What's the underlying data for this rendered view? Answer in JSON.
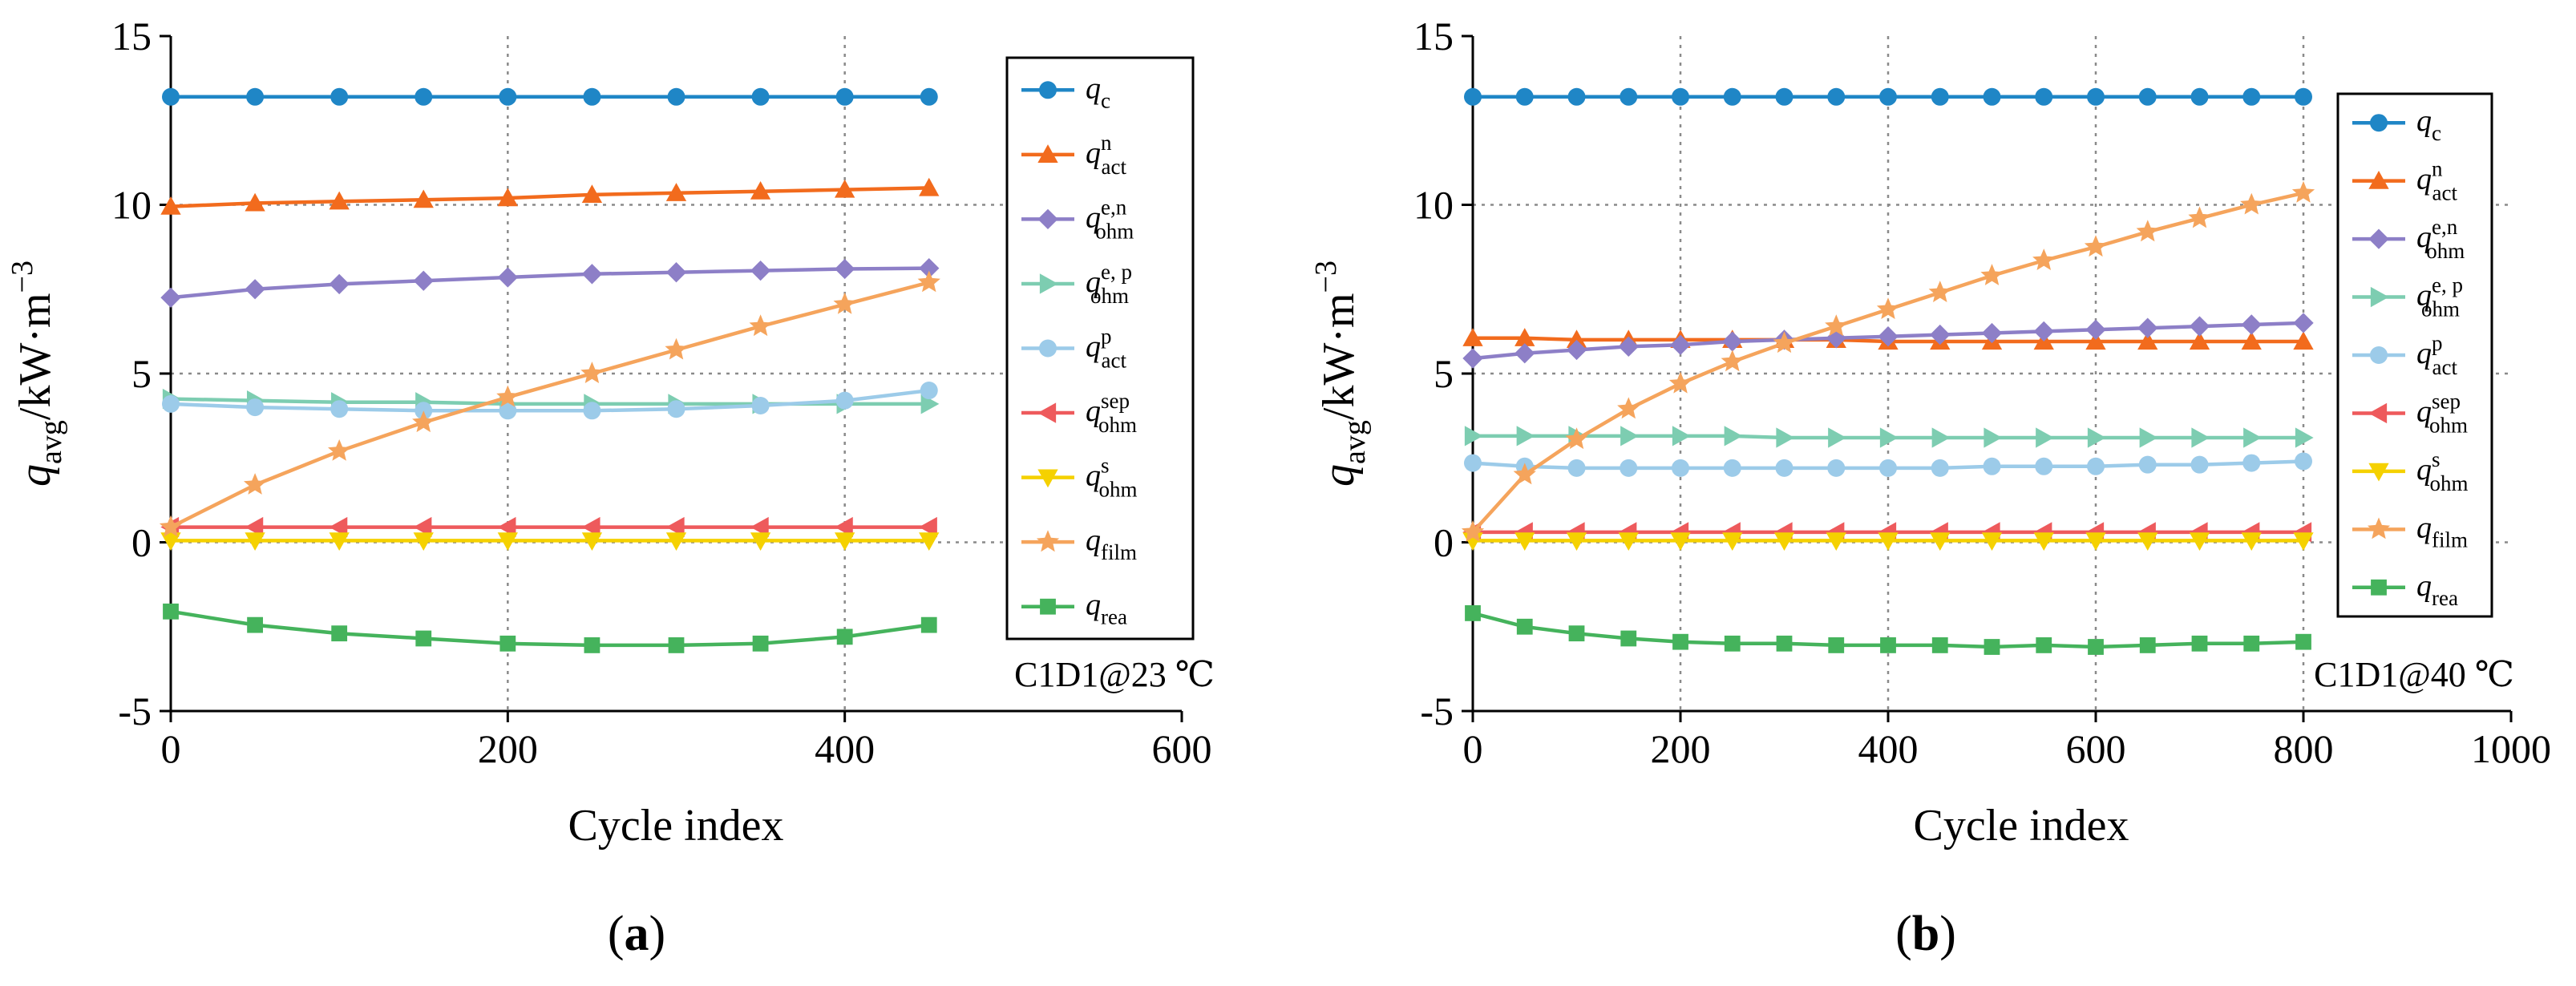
{
  "chart_data": [
    {
      "type": "line",
      "panel_label": "(a)",
      "annotation": "C1D1@23 ℃",
      "xlabel": "Cycle index",
      "ylabel": {
        "base": "q",
        "sub": "avg",
        "unit": "/kW·m",
        "sup": "−3"
      },
      "xlim": [
        0,
        600
      ],
      "ylim": [
        -5,
        15
      ],
      "xticks": [
        0,
        200,
        400,
        600
      ],
      "yticks": [
        -5,
        0,
        5,
        10,
        15
      ],
      "xtick_labels": [
        "0",
        "200",
        "400",
        "600"
      ],
      "ytick_labels": [
        "-5",
        "0",
        "5",
        "10",
        "15"
      ],
      "grid": true,
      "legend_position": "top-right",
      "x": [
        0,
        50,
        100,
        150,
        200,
        250,
        300,
        350,
        400,
        450
      ],
      "series": [
        {
          "name": "q_c",
          "sym": "q",
          "sub": "c",
          "sup": "",
          "color": "#1f86c6",
          "marker": "circle",
          "values": [
            13.2,
            13.2,
            13.2,
            13.2,
            13.2,
            13.2,
            13.2,
            13.2,
            13.2,
            13.2
          ]
        },
        {
          "name": "q_act^n",
          "sym": "q",
          "sub": "act",
          "sup": "n",
          "color": "#f26b1d",
          "marker": "triangle-up",
          "values": [
            9.95,
            10.05,
            10.1,
            10.15,
            10.2,
            10.3,
            10.35,
            10.4,
            10.45,
            10.5
          ]
        },
        {
          "name": "q_ohm^e,n",
          "sym": "q",
          "sub": "ohm",
          "sup": "e,n",
          "color": "#8d7fc7",
          "marker": "diamond",
          "values": [
            7.25,
            7.5,
            7.65,
            7.75,
            7.85,
            7.95,
            8.0,
            8.05,
            8.1,
            8.12
          ]
        },
        {
          "name": "q_ohm^e,p",
          "sym": "q",
          "sub": "ohm",
          "sup": "e, p",
          "color": "#7dcdb1",
          "marker": "triangle-right",
          "values": [
            4.25,
            4.2,
            4.15,
            4.15,
            4.1,
            4.1,
            4.1,
            4.1,
            4.1,
            4.1
          ]
        },
        {
          "name": "q_act^p",
          "sym": "q",
          "sub": "act",
          "sup": "p",
          "color": "#9ccbe9",
          "marker": "circle",
          "values": [
            4.1,
            4.0,
            3.95,
            3.9,
            3.9,
            3.9,
            3.95,
            4.05,
            4.2,
            4.5
          ]
        },
        {
          "name": "q_ohm^sep",
          "sym": "q",
          "sub": "ohm",
          "sup": "sep",
          "color": "#ee5a5c",
          "marker": "triangle-left",
          "values": [
            0.45,
            0.45,
            0.45,
            0.45,
            0.45,
            0.45,
            0.45,
            0.45,
            0.45,
            0.45
          ]
        },
        {
          "name": "q_ohm^s",
          "sym": "q",
          "sub": "ohm",
          "sup": "s",
          "color": "#f5d100",
          "marker": "triangle-down",
          "values": [
            0.05,
            0.05,
            0.05,
            0.05,
            0.05,
            0.05,
            0.05,
            0.05,
            0.05,
            0.05
          ]
        },
        {
          "name": "q_film",
          "sym": "q",
          "sub": "film",
          "sup": "",
          "color": "#f5a45c",
          "marker": "star",
          "values": [
            0.45,
            1.7,
            2.7,
            3.55,
            4.3,
            5.0,
            5.7,
            6.4,
            7.05,
            7.7
          ]
        },
        {
          "name": "q_rea",
          "sym": "q",
          "sub": "rea",
          "sup": "",
          "color": "#45b35c",
          "marker": "square",
          "values": [
            -2.05,
            -2.45,
            -2.7,
            -2.85,
            -3.0,
            -3.05,
            -3.05,
            -3.0,
            -2.8,
            -2.45
          ]
        }
      ]
    },
    {
      "type": "line",
      "panel_label": "(b)",
      "annotation": "C1D1@40 ℃",
      "xlabel": "Cycle index",
      "ylabel": {
        "base": "q",
        "sub": "avg",
        "unit": "/kW·m",
        "sup": "−3"
      },
      "xlim": [
        0,
        1000
      ],
      "ylim": [
        -5,
        15
      ],
      "xticks": [
        0,
        200,
        400,
        600,
        800,
        1000
      ],
      "yticks": [
        -5,
        0,
        5,
        10,
        15
      ],
      "xtick_labels": [
        "0",
        "200",
        "400",
        "600",
        "800",
        "1000"
      ],
      "ytick_labels": [
        "-5",
        "0",
        "5",
        "10",
        "15"
      ],
      "grid": true,
      "legend_position": "top-right",
      "x": [
        0,
        50,
        100,
        150,
        200,
        250,
        300,
        350,
        400,
        450,
        500,
        550,
        600,
        650,
        700,
        750,
        800
      ],
      "series": [
        {
          "name": "q_c",
          "sym": "q",
          "sub": "c",
          "sup": "",
          "color": "#1f86c6",
          "marker": "circle",
          "values": [
            13.2,
            13.2,
            13.2,
            13.2,
            13.2,
            13.2,
            13.2,
            13.2,
            13.2,
            13.2,
            13.2,
            13.2,
            13.2,
            13.2,
            13.2,
            13.2,
            13.2
          ]
        },
        {
          "name": "q_act^n",
          "sym": "q",
          "sub": "act",
          "sup": "n",
          "color": "#f26b1d",
          "marker": "triangle-up",
          "values": [
            6.05,
            6.05,
            6.0,
            6.0,
            6.0,
            6.0,
            6.0,
            6.0,
            5.95,
            5.95,
            5.95,
            5.95,
            5.95,
            5.95,
            5.95,
            5.95,
            5.95
          ]
        },
        {
          "name": "q_ohm^e,n",
          "sym": "q",
          "sub": "ohm",
          "sup": "e,n",
          "color": "#8d7fc7",
          "marker": "diamond",
          "values": [
            5.45,
            5.6,
            5.7,
            5.8,
            5.85,
            5.95,
            6.0,
            6.05,
            6.1,
            6.15,
            6.2,
            6.25,
            6.3,
            6.35,
            6.4,
            6.45,
            6.5
          ]
        },
        {
          "name": "q_ohm^e,p",
          "sym": "q",
          "sub": "ohm",
          "sup": "e, p",
          "color": "#7dcdb1",
          "marker": "triangle-right",
          "values": [
            3.15,
            3.15,
            3.15,
            3.15,
            3.15,
            3.15,
            3.1,
            3.1,
            3.1,
            3.1,
            3.1,
            3.1,
            3.1,
            3.1,
            3.1,
            3.1,
            3.1
          ]
        },
        {
          "name": "q_act^p",
          "sym": "q",
          "sub": "act",
          "sup": "p",
          "color": "#9ccbe9",
          "marker": "circle",
          "values": [
            2.35,
            2.25,
            2.2,
            2.2,
            2.2,
            2.2,
            2.2,
            2.2,
            2.2,
            2.2,
            2.25,
            2.25,
            2.25,
            2.3,
            2.3,
            2.35,
            2.4
          ]
        },
        {
          "name": "q_ohm^sep",
          "sym": "q",
          "sub": "ohm",
          "sup": "sep",
          "color": "#ee5a5c",
          "marker": "triangle-left",
          "values": [
            0.3,
            0.3,
            0.3,
            0.3,
            0.3,
            0.3,
            0.3,
            0.3,
            0.3,
            0.3,
            0.3,
            0.3,
            0.3,
            0.3,
            0.3,
            0.3,
            0.3
          ]
        },
        {
          "name": "q_ohm^s",
          "sym": "q",
          "sub": "ohm",
          "sup": "s",
          "color": "#f5d100",
          "marker": "triangle-down",
          "values": [
            0.05,
            0.05,
            0.05,
            0.05,
            0.05,
            0.05,
            0.05,
            0.05,
            0.05,
            0.05,
            0.05,
            0.05,
            0.05,
            0.05,
            0.05,
            0.05,
            0.05
          ]
        },
        {
          "name": "q_film",
          "sym": "q",
          "sub": "film",
          "sup": "",
          "color": "#f5a45c",
          "marker": "star",
          "values": [
            0.3,
            2.0,
            3.05,
            3.95,
            4.7,
            5.35,
            5.9,
            6.4,
            6.9,
            7.4,
            7.9,
            8.35,
            8.75,
            9.2,
            9.6,
            10.0,
            10.35
          ]
        },
        {
          "name": "q_rea",
          "sym": "q",
          "sub": "rea",
          "sup": "",
          "color": "#45b35c",
          "marker": "square",
          "values": [
            -2.1,
            -2.5,
            -2.7,
            -2.85,
            -2.95,
            -3.0,
            -3.0,
            -3.05,
            -3.05,
            -3.05,
            -3.1,
            -3.05,
            -3.1,
            -3.05,
            -3.0,
            -3.0,
            -2.95
          ]
        }
      ]
    }
  ]
}
